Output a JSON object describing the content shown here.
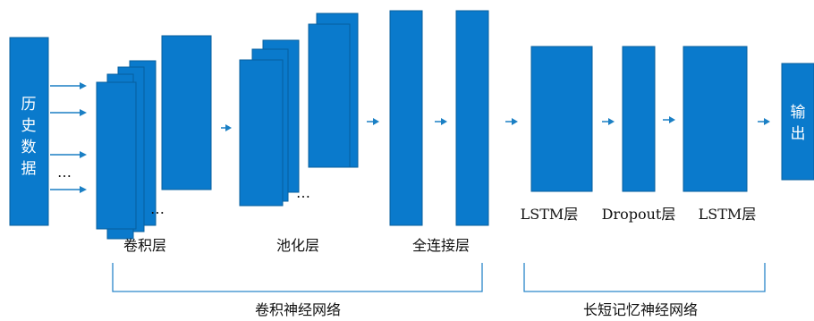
{
  "nodes": {
    "input": {
      "label_chars": [
        "历",
        "史",
        "数",
        "据"
      ],
      "dots": "…"
    },
    "output": {
      "label_chars": [
        "输",
        "出"
      ]
    }
  },
  "labels": {
    "conv": "卷积层",
    "pool": "池化层",
    "fc": "全连接层",
    "lstm1": "LSTM层",
    "dropout": "Dropout层",
    "lstm2": "LSTM层"
  },
  "ellipsis": "…",
  "groups": {
    "cnn": "卷积神经网络",
    "lstm": "长短记忆神经网络"
  },
  "colors": {
    "box": "#0a7acc",
    "arrow": "#1a7fc4",
    "brace": "#2a86c9"
  }
}
